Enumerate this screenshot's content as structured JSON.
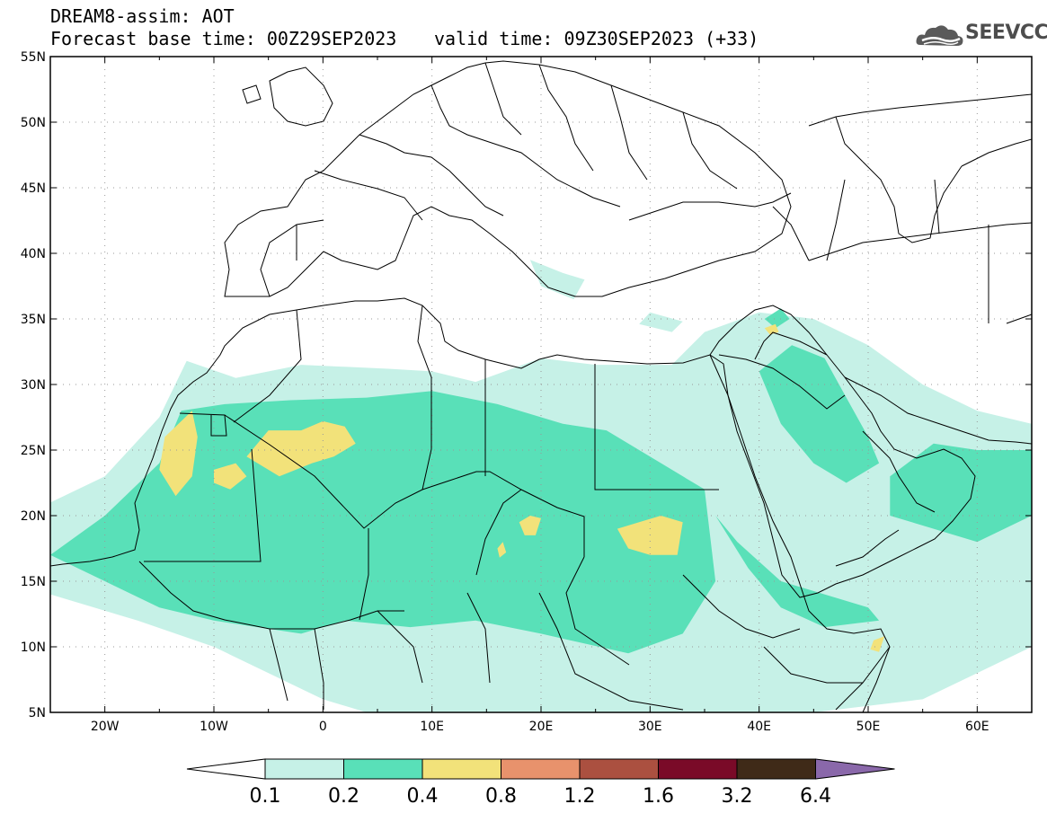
{
  "header": {
    "title": "DREAM8-assim: AOT",
    "base_time": "Forecast base time: 00Z29SEP2023",
    "valid_time": "valid time: 09Z30SEP2023 (+33)"
  },
  "logo": {
    "text": "SEEVCCC",
    "icon": "cloud-logo-icon"
  },
  "map": {
    "lon_range": [
      -25,
      65
    ],
    "lat_range": [
      5,
      55
    ],
    "lon_ticks": [
      {
        "value": -20,
        "label": "20W"
      },
      {
        "value": -10,
        "label": "10W"
      },
      {
        "value": 0,
        "label": "0"
      },
      {
        "value": 10,
        "label": "10E"
      },
      {
        "value": 20,
        "label": "20E"
      },
      {
        "value": 30,
        "label": "30E"
      },
      {
        "value": 40,
        "label": "40E"
      },
      {
        "value": 50,
        "label": "50E"
      },
      {
        "value": 60,
        "label": "60E"
      }
    ],
    "lat_ticks": [
      {
        "value": 55,
        "label": "55N"
      },
      {
        "value": 50,
        "label": "50N"
      },
      {
        "value": 45,
        "label": "45N"
      },
      {
        "value": 40,
        "label": "40N"
      },
      {
        "value": 35,
        "label": "35N"
      },
      {
        "value": 30,
        "label": "30N"
      },
      {
        "value": 25,
        "label": "25N"
      },
      {
        "value": 20,
        "label": "20N"
      },
      {
        "value": 15,
        "label": "15N"
      },
      {
        "value": 10,
        "label": "10N"
      },
      {
        "value": 5,
        "label": "5N"
      }
    ],
    "fields": [
      {
        "level": 0.1,
        "color": "#c6f1e7",
        "polygons": [
          [
            [
              -25,
              21
            ],
            [
              -20,
              23
            ],
            [
              -15,
              27.5
            ],
            [
              -12.5,
              31.8
            ],
            [
              -8,
              30.5
            ],
            [
              -2,
              31.5
            ],
            [
              6,
              31.2
            ],
            [
              10,
              31
            ],
            [
              14,
              30.2
            ],
            [
              20,
              32
            ],
            [
              25,
              31.5
            ],
            [
              32,
              31.5
            ],
            [
              35,
              34
            ],
            [
              40,
              35.5
            ],
            [
              45,
              35
            ],
            [
              50,
              33
            ],
            [
              55,
              30
            ],
            [
              60,
              28
            ],
            [
              65,
              27
            ],
            [
              65,
              10
            ],
            [
              60,
              8
            ],
            [
              55,
              6
            ],
            [
              45,
              5
            ],
            [
              30,
              5
            ],
            [
              20,
              5
            ],
            [
              10,
              5
            ],
            [
              4,
              5
            ],
            [
              0,
              6
            ],
            [
              -5,
              8
            ],
            [
              -10,
              10
            ],
            [
              -17,
              12
            ],
            [
              -25,
              14
            ]
          ],
          [
            [
              19,
              39.5
            ],
            [
              22,
              38.5
            ],
            [
              24,
              38
            ],
            [
              23,
              36.5
            ],
            [
              20,
              37.5
            ]
          ],
          [
            [
              29,
              34.6
            ],
            [
              32,
              34
            ],
            [
              33,
              34.8
            ],
            [
              30,
              35.5
            ]
          ]
        ]
      },
      {
        "level": 0.2,
        "color": "#59e0b8",
        "polygons": [
          [
            [
              -25,
              17
            ],
            [
              -20,
              20
            ],
            [
              -15,
              24
            ],
            [
              -13,
              28
            ],
            [
              -9,
              28.5
            ],
            [
              -3,
              28.8
            ],
            [
              4,
              29
            ],
            [
              10,
              29.5
            ],
            [
              16,
              28.5
            ],
            [
              22,
              27
            ],
            [
              26,
              26.5
            ],
            [
              30,
              24.5
            ],
            [
              35,
              22
            ],
            [
              36,
              15
            ],
            [
              33,
              11
            ],
            [
              28,
              9.5
            ],
            [
              20,
              11
            ],
            [
              14,
              12
            ],
            [
              8,
              11.5
            ],
            [
              2,
              12
            ],
            [
              -2,
              11
            ],
            [
              -10,
              12
            ],
            [
              -15,
              13
            ],
            [
              -20,
              15
            ]
          ],
          [
            [
              40,
              31
            ],
            [
              43,
              33
            ],
            [
              46,
              32
            ],
            [
              48,
              29
            ],
            [
              50,
              26
            ],
            [
              51,
              24
            ],
            [
              48,
              22.5
            ],
            [
              45,
              24
            ],
            [
              42,
              27
            ]
          ],
          [
            [
              52,
              23
            ],
            [
              56,
              25.5
            ],
            [
              60,
              25
            ],
            [
              65,
              25
            ],
            [
              65,
              20
            ],
            [
              60,
              18
            ],
            [
              56,
              19
            ],
            [
              52,
              20
            ]
          ],
          [
            [
              36,
              20
            ],
            [
              39,
              16
            ],
            [
              42,
              13
            ],
            [
              46,
              11.5
            ],
            [
              51,
              12
            ],
            [
              50,
              13
            ],
            [
              46,
              14
            ],
            [
              42,
              15
            ],
            [
              38,
              18
            ]
          ],
          [
            [
              40.5,
              35
            ],
            [
              42,
              35.8
            ],
            [
              42.8,
              35
            ],
            [
              41.5,
              34.3
            ]
          ]
        ]
      },
      {
        "level": 0.4,
        "color": "#f2e27a",
        "polygons": [
          [
            [
              -12,
              28
            ],
            [
              -14.5,
              26
            ],
            [
              -15,
              23.5
            ],
            [
              -13.5,
              21.5
            ],
            [
              -12,
              23
            ],
            [
              -11.5,
              26
            ]
          ],
          [
            [
              -7,
              24.5
            ],
            [
              -5,
              26.5
            ],
            [
              -2,
              26.5
            ],
            [
              0,
              27.2
            ],
            [
              2,
              26.8
            ],
            [
              3,
              25.5
            ],
            [
              1,
              24.5
            ],
            [
              -1,
              24
            ],
            [
              -4,
              23
            ]
          ],
          [
            [
              -10,
              23.5
            ],
            [
              -8,
              24
            ],
            [
              -7,
              23
            ],
            [
              -8.5,
              22
            ],
            [
              -10,
              22.5
            ]
          ],
          [
            [
              27,
              19
            ],
            [
              29,
              19.5
            ],
            [
              31,
              20
            ],
            [
              33,
              19.5
            ],
            [
              32.5,
              17
            ],
            [
              30,
              17
            ],
            [
              28,
              17.5
            ]
          ],
          [
            [
              18,
              19.5
            ],
            [
              19,
              20
            ],
            [
              20,
              19.8
            ],
            [
              19.5,
              18.5
            ],
            [
              18.5,
              18.5
            ]
          ],
          [
            [
              16,
              17.5
            ],
            [
              16.5,
              18
            ],
            [
              16.8,
              17.2
            ],
            [
              16.2,
              16.8
            ]
          ],
          [
            [
              40.5,
              34.3
            ],
            [
              41.5,
              34.6
            ],
            [
              41.8,
              34
            ],
            [
              41,
              33.8
            ]
          ],
          [
            [
              50.5,
              10.5
            ],
            [
              51.5,
              10.8
            ],
            [
              51,
              9.6
            ],
            [
              50.2,
              9.8
            ]
          ]
        ]
      }
    ]
  },
  "colorbar": {
    "levels": [
      "0.1",
      "0.2",
      "0.4",
      "0.8",
      "1.2",
      "1.6",
      "3.2",
      "6.4"
    ],
    "colors": [
      "#ffffff",
      "#c6f1e7",
      "#59e0b8",
      "#f2e27a",
      "#e8926c",
      "#ab5040",
      "#7a0a28",
      "#3f2a18",
      "#8a68aa"
    ]
  }
}
